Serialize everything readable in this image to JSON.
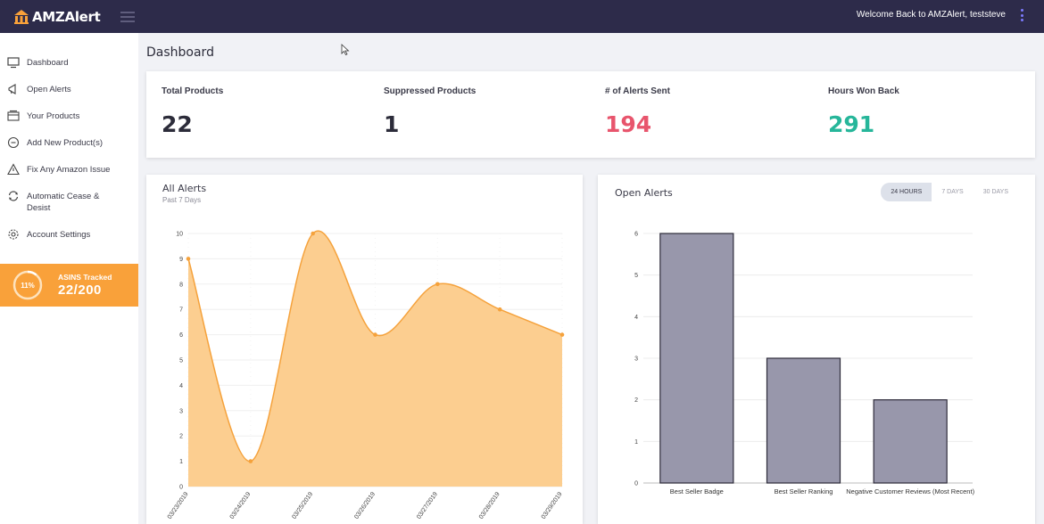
{
  "header": {
    "brand": "AMZAlert",
    "welcome": "Welcome Back to AMZAlert, teststeve"
  },
  "sidebar": {
    "items": [
      {
        "label": "Dashboard",
        "icon": "monitor-icon"
      },
      {
        "label": "Open Alerts",
        "icon": "megaphone-icon"
      },
      {
        "label": "Your Products",
        "icon": "products-icon"
      },
      {
        "label": "Add New Product(s)",
        "icon": "plus-circle-icon"
      },
      {
        "label": "Fix Any Amazon Issue",
        "icon": "warning-icon"
      },
      {
        "label": "Automatic Cease & Desist",
        "icon": "refresh-icon"
      },
      {
        "label": "Account Settings",
        "icon": "gear-icon"
      }
    ],
    "asins": {
      "percent_label": "11%",
      "percent": 11,
      "label": "ASINS Tracked",
      "value": "22/200"
    }
  },
  "page": {
    "title": "Dashboard"
  },
  "stats": [
    {
      "label": "Total Products",
      "value": "22",
      "color": "#2c2c3a"
    },
    {
      "label": "Suppressed Products",
      "value": "1",
      "color": "#2c2c3a"
    },
    {
      "label": "# of Alerts Sent",
      "value": "194",
      "color": "#e8556d"
    },
    {
      "label": "Hours Won Back",
      "value": "291",
      "color": "#26b69a"
    }
  ],
  "all_alerts": {
    "title": "All Alerts",
    "subtitle": "Past 7 Days"
  },
  "open_alerts": {
    "title": "Open Alerts",
    "ranges": [
      "24 HOURS",
      "7 DAYS",
      "30 DAYS"
    ],
    "active_range": "24 HOURS"
  },
  "colors": {
    "accent_orange": "#f9a13a",
    "area_fill": "#fccb8a",
    "line": "#f5a23c",
    "bar_fill": "#9897ab",
    "topbar": "#2d2b4a"
  },
  "chart_data": [
    {
      "type": "area",
      "title": "All Alerts",
      "subtitle": "Past 7 Days",
      "x": [
        "03/23/2019",
        "03/24/2019",
        "03/25/2019",
        "03/26/2019",
        "03/27/2019",
        "03/28/2019",
        "03/29/2019"
      ],
      "values": [
        9,
        1,
        10,
        6,
        8,
        7,
        6
      ],
      "ylim": [
        0,
        10
      ],
      "yticks": [
        0,
        1,
        2,
        3,
        4,
        5,
        6,
        7,
        8,
        9,
        10
      ],
      "grid": true
    },
    {
      "type": "bar",
      "title": "Open Alerts",
      "categories": [
        "Best Seller Badge",
        "Best Seller Ranking",
        "Negative Customer Reviews (Most Recent)"
      ],
      "values": [
        6,
        3,
        2
      ],
      "ylim": [
        0,
        6
      ],
      "yticks": [
        0,
        1,
        2,
        3,
        4,
        5,
        6
      ],
      "grid": true
    }
  ]
}
